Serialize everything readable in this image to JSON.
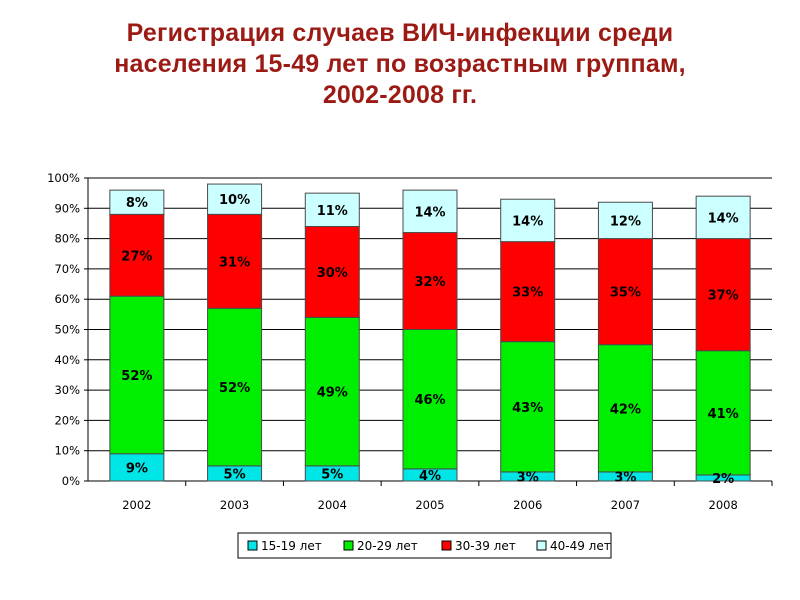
{
  "title_lines": [
    "Регистрация случаев ВИЧ-инфекции среди",
    "населения 15-49 лет по возрастным группам,",
    "2002-2008 гг."
  ],
  "chart_data": {
    "type": "bar",
    "stacked": true,
    "categories": [
      "2002",
      "2003",
      "2004",
      "2005",
      "2006",
      "2007",
      "2008"
    ],
    "series": [
      {
        "name": "15-19 лет",
        "color": "#00e5e5",
        "values": [
          9,
          5,
          5,
          4,
          3,
          3,
          2
        ]
      },
      {
        "name": "20-29 лет",
        "color": "#00ee00",
        "values": [
          52,
          52,
          49,
          46,
          43,
          42,
          41
        ]
      },
      {
        "name": "30-39 лет",
        "color": "#ff0000",
        "values": [
          27,
          31,
          30,
          32,
          33,
          35,
          37
        ]
      },
      {
        "name": "40-49 лет",
        "color": "#ccffff",
        "values": [
          8,
          10,
          11,
          14,
          14,
          12,
          14
        ]
      }
    ],
    "value_suffix": "%",
    "ylim": [
      0,
      100
    ],
    "yticks": [
      "0%",
      "10%",
      "20%",
      "30%",
      "40%",
      "50%",
      "60%",
      "70%",
      "80%",
      "90%",
      "100%"
    ],
    "grid": true,
    "legend_position": "bottom"
  }
}
